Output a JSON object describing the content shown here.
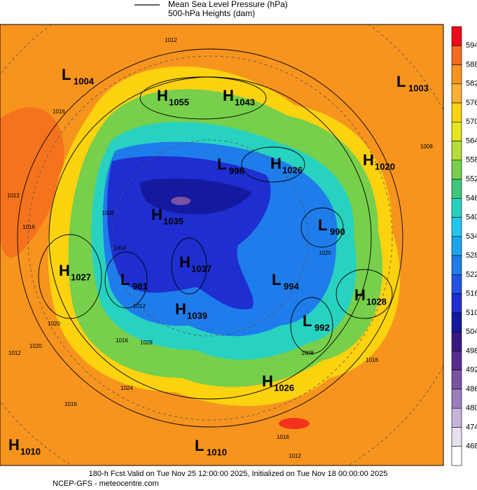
{
  "header": {
    "line1": "Mean Sea Level Pressure (hPa)",
    "line2": "500-hPa Heights (dam)"
  },
  "centers": [
    {
      "type": "L",
      "value": 1004
    },
    {
      "type": "H",
      "value": 1055
    },
    {
      "type": "H",
      "value": 1043
    },
    {
      "type": "L",
      "value": 1003
    },
    {
      "type": "L",
      "value": 998
    },
    {
      "type": "H",
      "value": 1026
    },
    {
      "type": "H",
      "value": 1020
    },
    {
      "type": "H",
      "value": 1035
    },
    {
      "type": "L",
      "value": 990
    },
    {
      "type": "H",
      "value": 1037
    },
    {
      "type": "H",
      "value": 1027
    },
    {
      "type": "L",
      "value": 981
    },
    {
      "type": "L",
      "value": 994
    },
    {
      "type": "H",
      "value": 1028
    },
    {
      "type": "H",
      "value": 1039
    },
    {
      "type": "L",
      "value": 992
    },
    {
      "type": "H",
      "value": 1026
    },
    {
      "type": "H",
      "value": 1010
    },
    {
      "type": "L",
      "value": 1010
    }
  ],
  "isobar_labels": [
    1012,
    1016,
    1012,
    1016,
    1008,
    1004,
    1012,
    1016,
    1020,
    1020,
    1012,
    1028,
    1024,
    1016,
    1012,
    1016,
    1016,
    1008,
    1020,
    1008
  ],
  "colorbar": {
    "levels": [
      594,
      588,
      582,
      576,
      570,
      564,
      558,
      552,
      546,
      540,
      534,
      528,
      522,
      516,
      510,
      504,
      498,
      492,
      486,
      480,
      474,
      468
    ],
    "colors": [
      "#ed0a1a",
      "#f46a1e",
      "#f7941d",
      "#fbb034",
      "#fdd20e",
      "#e4e51b",
      "#b5dc3b",
      "#77cf4c",
      "#3fc67a",
      "#28d2c0",
      "#22c7ef",
      "#1ea4ef",
      "#1f7ceb",
      "#2152e6",
      "#1e2ed0",
      "#15199f",
      "#381984",
      "#582c8e",
      "#7a52a2",
      "#9c7dbb",
      "#c6b3d9",
      "#e7e0ef",
      "#ffffff"
    ]
  },
  "footer": {
    "line1": "180-h Fcst Valid on Tue Nov 25 12:00:00 2025, Initialized on Tue Nov 18 00:00:00 2025",
    "line2": "NCEP-GFS  - meteocentre.com"
  }
}
